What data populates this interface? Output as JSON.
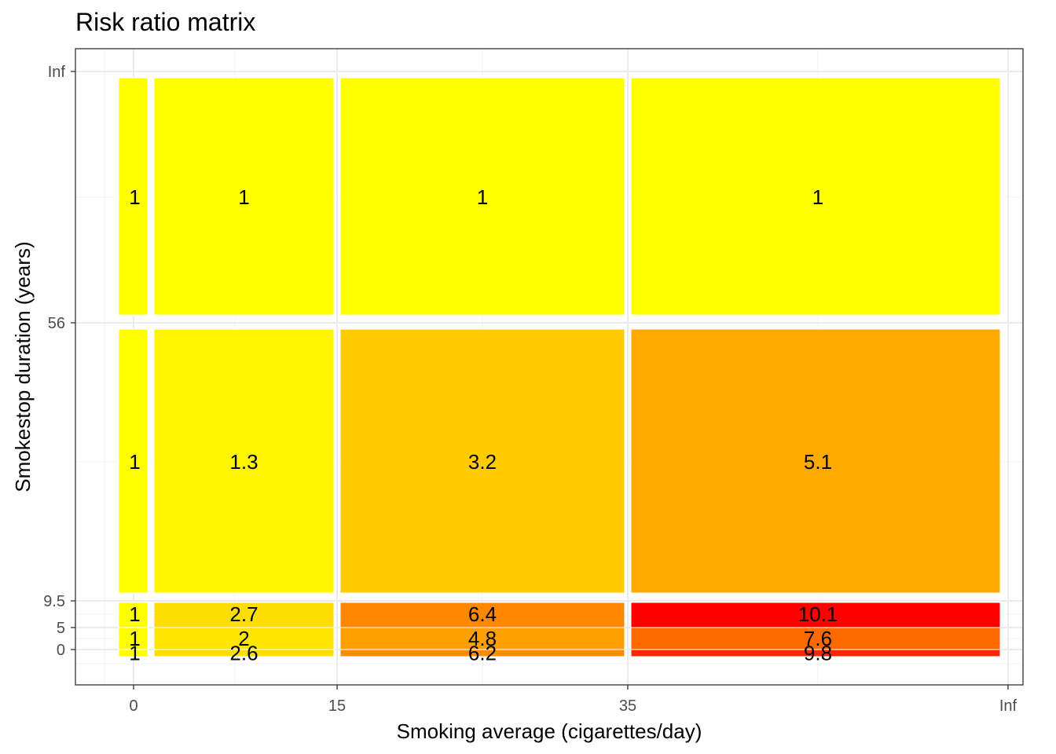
{
  "chart_data": {
    "type": "heatmap",
    "title": "Risk ratio matrix",
    "xlabel": "Smoking average (cigarettes/day)",
    "ylabel": "Smokestop duration (years)",
    "x_breaks": [
      "0",
      "15",
      "35",
      "Inf"
    ],
    "y_breaks": [
      "0",
      "5",
      "9.5",
      "56",
      "Inf"
    ],
    "grid": true,
    "legend": "none",
    "columns": [
      {
        "from": "-1",
        "to": "1"
      },
      {
        "from": "1",
        "to": "15"
      },
      {
        "from": "15",
        "to": "35"
      },
      {
        "from": "35",
        "to": "Inf"
      }
    ],
    "rows": [
      {
        "from": "-1",
        "to": "0"
      },
      {
        "from": "0",
        "to": "5"
      },
      {
        "from": "5",
        "to": "9.5"
      },
      {
        "from": "9.5",
        "to": "56"
      },
      {
        "from": "56",
        "to": "Inf"
      }
    ],
    "values": [
      [
        1,
        2.6,
        6.2,
        9.8
      ],
      [
        1,
        2,
        4.8,
        7.6
      ],
      [
        1,
        2.7,
        6.4,
        10.1
      ],
      [
        1,
        1.3,
        3.2,
        5.1
      ],
      [
        1,
        1,
        1,
        1
      ]
    ],
    "value_labels": [
      [
        "1",
        "2.6",
        "6.2",
        "9.8"
      ],
      [
        "1",
        "2",
        "4.8",
        "7.6"
      ],
      [
        "1",
        "2.7",
        "6.4",
        "10.1"
      ],
      [
        "1",
        "1.3",
        "3.2",
        "5.1"
      ],
      [
        "1",
        "1",
        "1",
        "1"
      ]
    ],
    "colors": [
      [
        "#ffff00",
        "#ffdd00",
        "#ff8c00",
        "#ff2600"
      ],
      [
        "#ffff00",
        "#ffe600",
        "#ffa000",
        "#ff6a00"
      ],
      [
        "#ffff00",
        "#ffdd00",
        "#ff8800",
        "#ff0000"
      ],
      [
        "#ffff00",
        "#fff500",
        "#ffcc00",
        "#ffaa00"
      ],
      [
        "#ffff00",
        "#ffff00",
        "#ffff00",
        "#ffff00"
      ]
    ]
  }
}
